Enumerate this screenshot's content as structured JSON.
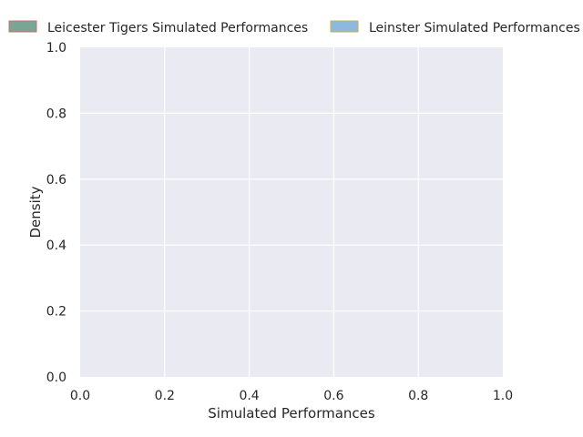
{
  "chart_data": {
    "type": "area",
    "title": "",
    "xlabel": "Simulated Performances",
    "ylabel": "Density",
    "xlim": [
      0.0,
      1.0
    ],
    "ylim": [
      0.0,
      1.0
    ],
    "xticks": [
      "0.0",
      "0.2",
      "0.4",
      "0.6",
      "0.8",
      "1.0"
    ],
    "yticks": [
      "0.0",
      "0.2",
      "0.4",
      "0.6",
      "0.8",
      "1.0"
    ],
    "xtick_values": [
      0.0,
      0.2,
      0.4,
      0.6,
      0.8,
      1.0
    ],
    "ytick_values": [
      0.0,
      0.2,
      0.4,
      0.6,
      0.8,
      1.0
    ],
    "grid": true,
    "legend_placement": "top, outside plot, two columns",
    "series": [
      {
        "name": "Leicester Tigers Simulated Performances",
        "values": [],
        "fill_color": "#7aa595",
        "edge_color": "#cd6f6f"
      },
      {
        "name": "Leinster Simulated Performances",
        "values": [],
        "fill_color": "#8eb9df",
        "edge_color": "#c6b24c"
      }
    ],
    "colors": {
      "plot_background": "#eaeaf2",
      "grid": "#ffffff",
      "text": "#262626"
    }
  }
}
